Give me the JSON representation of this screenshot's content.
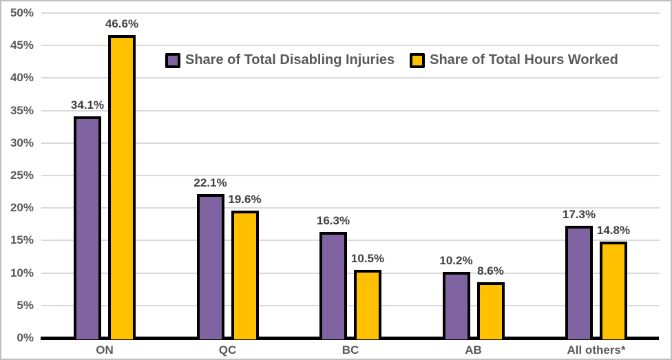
{
  "chart_data": {
    "type": "bar",
    "title": "",
    "xlabel": "",
    "ylabel": "",
    "categories": [
      "ON",
      "QC",
      "BC",
      "AB",
      "All others*"
    ],
    "series": [
      {
        "name": "Share of Total Disabling Injuries",
        "color": "#8064A2",
        "values": [
          34.1,
          22.1,
          16.3,
          10.2,
          17.3
        ],
        "labels": [
          "34.1%",
          "22.1%",
          "16.3%",
          "10.2%",
          "17.3%"
        ]
      },
      {
        "name": "Share of Total Hours Worked",
        "color": "#FFC000",
        "values": [
          46.6,
          19.6,
          10.5,
          8.6,
          14.8
        ],
        "labels": [
          "46.6%",
          "19.6%",
          "10.5%",
          "8.6%",
          "14.8%"
        ]
      }
    ],
    "y_ticks": [
      "0%",
      "5%",
      "10%",
      "15%",
      "20%",
      "25%",
      "30%",
      "35%",
      "40%",
      "45%",
      "50%"
    ],
    "ylim": [
      0,
      50
    ],
    "grid": true,
    "legend_position": "top-inside"
  },
  "style": {
    "bar_border_color": "#000000",
    "gridline_color": "#D9D9D9",
    "axis_line_color": "#000000",
    "axis_text_color": "#595959",
    "data_label_color": "#404040",
    "frame_border_color": "#BFBFBF",
    "background_color": "#FFFFFF"
  }
}
